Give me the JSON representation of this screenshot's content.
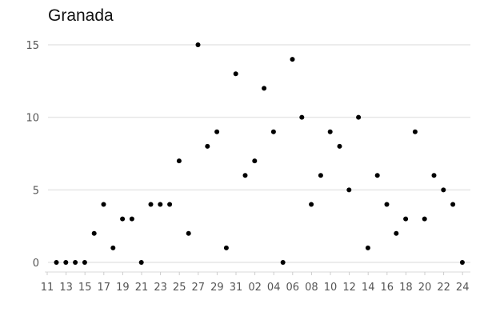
{
  "chart_data": {
    "type": "scatter",
    "title": "Granada",
    "xlabel": "",
    "ylabel": "",
    "ylim": [
      0,
      15
    ],
    "y_ticks": [
      0,
      5,
      10,
      15
    ],
    "grid": "horizontal",
    "legend": "none",
    "point_color": "#000000",
    "x_tick_labels": [
      "11",
      "13",
      "15",
      "17",
      "19",
      "21",
      "23",
      "25",
      "27",
      "29",
      "31",
      "02",
      "04",
      "06",
      "08",
      "10",
      "12",
      "14",
      "16",
      "18",
      "20",
      "22",
      "24"
    ],
    "x": [
      "12",
      "13",
      "14",
      "15",
      "16",
      "17",
      "18",
      "19",
      "20",
      "21",
      "22",
      "23",
      "24",
      "25",
      "26",
      "27",
      "28",
      "29",
      "30",
      "31",
      "01",
      "02",
      "03",
      "04",
      "05",
      "06",
      "07",
      "08",
      "09",
      "10",
      "11",
      "12",
      "13",
      "14",
      "15",
      "16",
      "17",
      "18",
      "19",
      "20",
      "21",
      "22",
      "23",
      "24"
    ],
    "values": [
      0,
      0,
      0,
      0,
      2,
      4,
      1,
      3,
      3,
      0,
      4,
      4,
      4,
      7,
      2,
      15,
      8,
      9,
      1,
      13,
      6,
      7,
      12,
      9,
      0,
      14,
      10,
      4,
      6,
      9,
      8,
      5,
      10,
      1,
      6,
      4,
      2,
      3,
      9,
      3,
      6,
      5,
      4,
      0
    ]
  }
}
